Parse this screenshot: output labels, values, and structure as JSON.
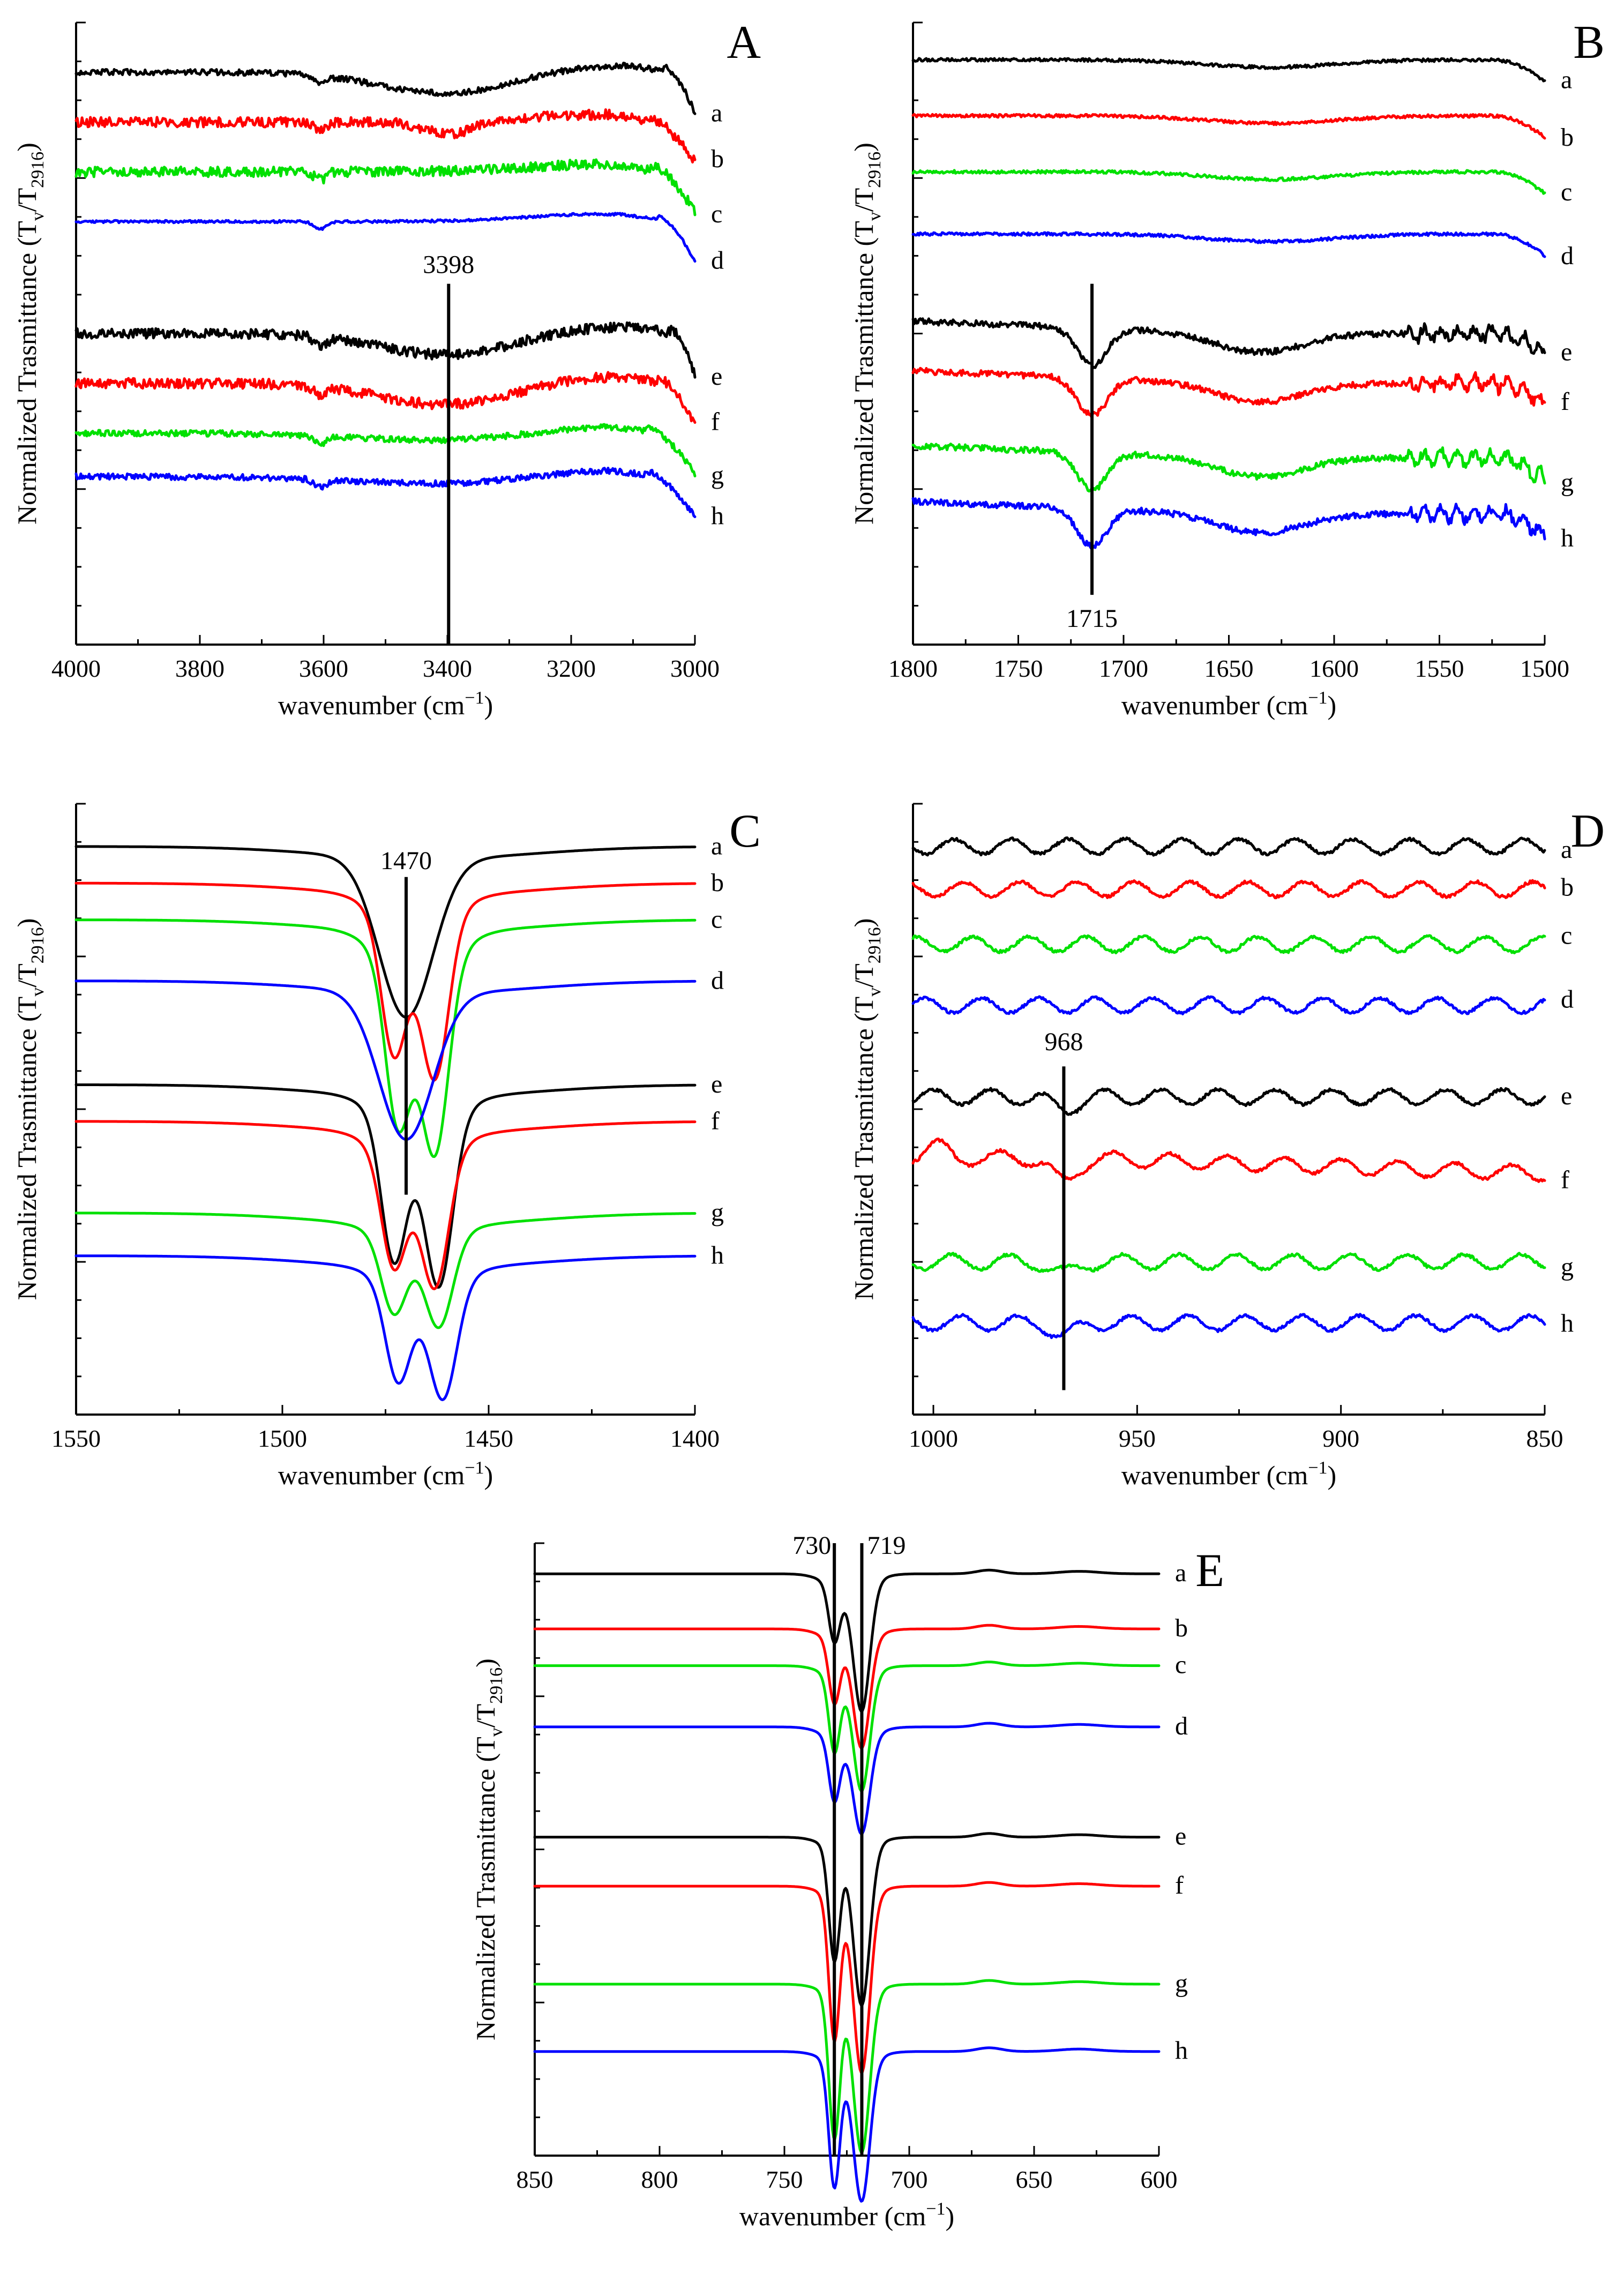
{
  "figure": {
    "ylabel": "Normalized Trasmittance (T",
    "ylabel_sub1": "v",
    "ylabel_sep": "/T",
    "ylabel_sub2": "2916",
    "ylabel_close": ")",
    "xlabel": "wavenumber (cm",
    "xlabel_sup": "−1",
    "xlabel_close": ")"
  },
  "colors": {
    "black": "#000000",
    "red": "#ff0000",
    "green": "#00e000",
    "blue": "#0000ff"
  },
  "chart_data": [
    {
      "id": "A",
      "panel_label": "A",
      "type": "line",
      "xlim": [
        4000,
        3000
      ],
      "xticks": [
        "4000",
        "3800",
        "3600",
        "3400",
        "3200",
        "3000"
      ],
      "xtick_values": [
        4000,
        3800,
        3600,
        3400,
        3200,
        3000
      ],
      "grid": false,
      "yticks_labeled": false,
      "series": [
        {
          "name": "a",
          "color": "black",
          "offset": 0.92,
          "baseline_shape": "broad dip near 3398",
          "noise": "medium",
          "edge_drop_at": 3050
        },
        {
          "name": "b",
          "color": "red",
          "offset": 0.84,
          "baseline_shape": "dip at 3398",
          "noise": "high",
          "edge_drop_at": 3080
        },
        {
          "name": "c",
          "color": "green",
          "offset": 0.76,
          "baseline_shape": "flat",
          "noise": "high",
          "edge_drop_at": 3070
        },
        {
          "name": "d",
          "color": "blue",
          "offset": 0.68,
          "baseline_shape": "flat, dip at 3600",
          "noise": "low",
          "edge_drop_at": 3060
        },
        {
          "name": "e",
          "color": "black",
          "offset": 0.5,
          "baseline_shape": "broad dip at 3398",
          "noise": "high",
          "edge_drop_at": 3040
        },
        {
          "name": "f",
          "color": "red",
          "offset": 0.42,
          "baseline_shape": "broad dip at 3398",
          "noise": "high",
          "edge_drop_at": 3060
        },
        {
          "name": "g",
          "color": "green",
          "offset": 0.34,
          "baseline_shape": "shallow dip",
          "noise": "medium",
          "edge_drop_at": 3080
        },
        {
          "name": "h",
          "color": "blue",
          "offset": 0.27,
          "baseline_shape": "shallow dip",
          "noise": "medium",
          "edge_drop_at": 3080
        }
      ],
      "markers": [
        {
          "value": 3398,
          "label": "3398"
        }
      ]
    },
    {
      "id": "B",
      "panel_label": "B",
      "type": "line",
      "xlim": [
        1800,
        1500
      ],
      "xticks": [
        "1800",
        "1750",
        "1700",
        "1650",
        "1600",
        "1550",
        "1500"
      ],
      "xtick_values": [
        1800,
        1750,
        1700,
        1650,
        1600,
        1550,
        1500
      ],
      "grid": false,
      "yticks_labeled": false,
      "series": [
        {
          "name": "a",
          "color": "black",
          "offset": 0.94
        },
        {
          "name": "b",
          "color": "red",
          "offset": 0.85
        },
        {
          "name": "c",
          "color": "green",
          "offset": 0.76
        },
        {
          "name": "d",
          "color": "blue",
          "offset": 0.66
        },
        {
          "name": "e",
          "color": "black",
          "offset": 0.5,
          "peak": 1715
        },
        {
          "name": "f",
          "color": "red",
          "offset": 0.42,
          "peak": 1715
        },
        {
          "name": "g",
          "color": "green",
          "offset": 0.3,
          "peak": 1715
        },
        {
          "name": "h",
          "color": "blue",
          "offset": 0.21,
          "peak": 1715
        }
      ],
      "markers": [
        {
          "value": 1715,
          "label": "1715"
        }
      ]
    },
    {
      "id": "C",
      "panel_label": "C",
      "type": "line",
      "xlim": [
        1550,
        1400
      ],
      "xticks": [
        "1550",
        "1500",
        "1450",
        "1400"
      ],
      "xtick_values": [
        1550,
        1500,
        1450,
        1400
      ],
      "grid": false,
      "yticks_labeled": false,
      "series": [
        {
          "name": "a",
          "color": "black",
          "offset": 0.93,
          "peaks": [
            1470
          ],
          "depth": 0.26
        },
        {
          "name": "b",
          "color": "red",
          "offset": 0.87,
          "peaks": [
            1473,
            1463
          ],
          "depth": 0.25
        },
        {
          "name": "c",
          "color": "green",
          "offset": 0.81,
          "peaks": [
            1472,
            1463
          ],
          "depth": 0.3
        },
        {
          "name": "d",
          "color": "blue",
          "offset": 0.71,
          "peaks": [
            1470
          ],
          "depth": 0.24
        },
        {
          "name": "e",
          "color": "black",
          "offset": 0.54,
          "peaks": [
            1473,
            1462
          ],
          "depth": 0.26
        },
        {
          "name": "f",
          "color": "red",
          "offset": 0.48,
          "peaks": [
            1473,
            1463
          ],
          "depth": 0.21
        },
        {
          "name": "g",
          "color": "green",
          "offset": 0.33,
          "peaks": [
            1473,
            1462
          ],
          "depth": 0.14
        },
        {
          "name": "h",
          "color": "blue",
          "offset": 0.26,
          "peaks": [
            1472,
            1461
          ],
          "depth": 0.18
        }
      ],
      "markers": [
        {
          "value": 1470,
          "label": "1470"
        }
      ]
    },
    {
      "id": "D",
      "panel_label": "D",
      "type": "line",
      "xlim": [
        1005,
        850
      ],
      "xticks": [
        "1000",
        "950",
        "900",
        "850"
      ],
      "xtick_values": [
        1000,
        950,
        900,
        850
      ],
      "grid": false,
      "yticks_labeled": false,
      "series": [
        {
          "name": "a",
          "color": "black",
          "offset": 0.93
        },
        {
          "name": "b",
          "color": "red",
          "offset": 0.86
        },
        {
          "name": "c",
          "color": "green",
          "offset": 0.77
        },
        {
          "name": "d",
          "color": "blue",
          "offset": 0.67
        },
        {
          "name": "e",
          "color": "black",
          "offset": 0.52,
          "peak": 968
        },
        {
          "name": "f",
          "color": "red",
          "offset": 0.42,
          "peak": 968
        },
        {
          "name": "g",
          "color": "green",
          "offset": 0.25,
          "peak": 968
        },
        {
          "name": "h",
          "color": "blue",
          "offset": 0.15,
          "peak": 968
        }
      ],
      "markers": [
        {
          "value": 968,
          "label": "968"
        }
      ]
    },
    {
      "id": "E",
      "panel_label": "E",
      "type": "line",
      "xlim": [
        850,
        600
      ],
      "xticks": [
        "850",
        "800",
        "750",
        "700",
        "650",
        "600"
      ],
      "xtick_values": [
        850,
        800,
        750,
        700,
        650,
        600
      ],
      "grid": false,
      "yticks_labeled": false,
      "series": [
        {
          "name": "a",
          "color": "black",
          "offset": 0.95,
          "peaks": [
            730,
            719
          ]
        },
        {
          "name": "b",
          "color": "red",
          "offset": 0.86,
          "peaks": [
            730,
            719
          ]
        },
        {
          "name": "c",
          "color": "green",
          "offset": 0.8,
          "peaks": [
            730,
            719
          ]
        },
        {
          "name": "d",
          "color": "blue",
          "offset": 0.7,
          "peaks": [
            730,
            719
          ]
        },
        {
          "name": "e",
          "color": "black",
          "offset": 0.52,
          "peaks": [
            730,
            719
          ]
        },
        {
          "name": "f",
          "color": "red",
          "offset": 0.44,
          "peaks": [
            730,
            719
          ]
        },
        {
          "name": "g",
          "color": "green",
          "offset": 0.28,
          "peaks": [
            730,
            719
          ]
        },
        {
          "name": "h",
          "color": "blue",
          "offset": 0.17,
          "peaks": [
            730,
            719
          ]
        }
      ],
      "markers": [
        {
          "value": 730,
          "label": "730"
        },
        {
          "value": 719,
          "label": "719"
        }
      ]
    }
  ]
}
